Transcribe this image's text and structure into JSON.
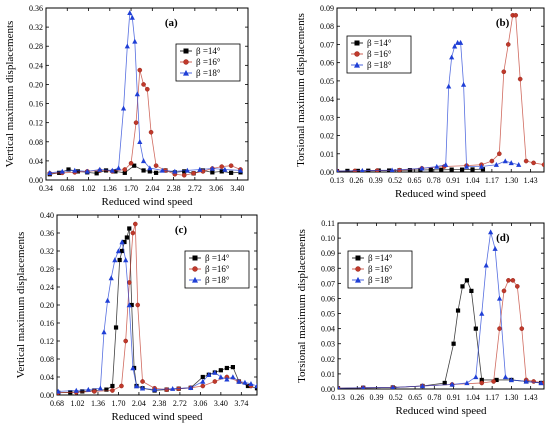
{
  "chart_data": [
    {
      "type": "line",
      "panel_label": "(a)",
      "xlabel": "Reduced wind speed",
      "ylabel": "Vertical maximum displacements",
      "xlim": [
        0.34,
        3.57
      ],
      "ylim": [
        0,
        0.36
      ],
      "xticks": [
        "0.34",
        "0.68",
        "1.02",
        "1.36",
        "1.70",
        "2.04",
        "2.38",
        "2.72",
        "3.06",
        "3.40"
      ],
      "yticks": [
        "0.00",
        "0.04",
        "0.08",
        "0.12",
        "0.16",
        "0.20",
        "0.24",
        "0.28",
        "0.32",
        "0.36"
      ],
      "legend_position": "upper-right",
      "series": [
        {
          "name": "β =14°",
          "color": "#000000",
          "marker": "square",
          "x": [
            0.4,
            0.55,
            0.7,
            0.85,
            1.0,
            1.15,
            1.3,
            1.45,
            1.6,
            1.75,
            1.9,
            2.0,
            2.1,
            2.25,
            2.4,
            2.55,
            2.7,
            2.85,
            3.0,
            3.15,
            3.3,
            3.45
          ],
          "y": [
            0.012,
            0.015,
            0.022,
            0.018,
            0.016,
            0.014,
            0.02,
            0.018,
            0.015,
            0.03,
            0.02,
            0.018,
            0.015,
            0.02,
            0.016,
            0.018,
            0.014,
            0.02,
            0.016,
            0.018,
            0.015,
            0.016
          ]
        },
        {
          "name": "β =16°",
          "color": "#c0392b",
          "marker": "circle",
          "x": [
            0.4,
            0.6,
            0.8,
            1.0,
            1.2,
            1.4,
            1.6,
            1.7,
            1.78,
            1.84,
            1.9,
            1.96,
            2.02,
            2.1,
            2.25,
            2.4,
            2.55,
            2.7,
            2.85,
            3.0,
            3.15,
            3.3,
            3.45
          ],
          "y": [
            0.014,
            0.015,
            0.016,
            0.018,
            0.02,
            0.018,
            0.022,
            0.035,
            0.12,
            0.23,
            0.2,
            0.19,
            0.1,
            0.03,
            0.02,
            0.012,
            0.01,
            0.014,
            0.018,
            0.024,
            0.028,
            0.03,
            0.022
          ]
        },
        {
          "name": "β =18°",
          "color": "#1f3fd6",
          "marker": "triangle",
          "x": [
            0.4,
            0.6,
            0.8,
            1.0,
            1.2,
            1.4,
            1.5,
            1.58,
            1.64,
            1.68,
            1.72,
            1.76,
            1.8,
            1.84,
            1.9,
            2.0,
            2.2,
            2.4,
            2.6,
            2.8,
            3.0,
            3.2,
            3.45
          ],
          "y": [
            0.015,
            0.018,
            0.02,
            0.018,
            0.022,
            0.02,
            0.025,
            0.15,
            0.28,
            0.35,
            0.34,
            0.29,
            0.18,
            0.08,
            0.04,
            0.025,
            0.02,
            0.018,
            0.02,
            0.022,
            0.024,
            0.022,
            0.02
          ]
        }
      ]
    },
    {
      "type": "line",
      "panel_label": "(b)",
      "xlabel": "Reduced wind speed",
      "ylabel": "Torsional maximum displacements",
      "xlim": [
        0.13,
        1.52
      ],
      "ylim": [
        0,
        0.09
      ],
      "xticks": [
        "0.13",
        "0.26",
        "0.39",
        "0.52",
        "0.65",
        "0.78",
        "0.91",
        "1.04",
        "1.17",
        "1.30",
        "1.43"
      ],
      "yticks": [
        "0.00",
        "0.01",
        "0.02",
        "0.03",
        "0.04",
        "0.05",
        "0.06",
        "0.07",
        "0.08",
        "0.09"
      ],
      "legend_position": "upper-left",
      "series": [
        {
          "name": "β =14°",
          "color": "#000000",
          "marker": "square",
          "x": [
            0.13,
            0.2,
            0.27,
            0.34,
            0.41,
            0.48,
            0.55,
            0.62,
            0.69,
            0.76,
            0.83,
            0.9,
            0.97,
            1.04,
            1.11
          ],
          "y": [
            0.0005,
            0.0006,
            0.0006,
            0.0007,
            0.0008,
            0.0008,
            0.0009,
            0.001,
            0.0011,
            0.0012,
            0.0012,
            0.0013,
            0.0013,
            0.0014,
            0.0015
          ]
        },
        {
          "name": "β =16°",
          "color": "#c0392b",
          "marker": "circle",
          "x": [
            0.13,
            0.25,
            0.4,
            0.55,
            0.7,
            0.85,
            1.0,
            1.1,
            1.17,
            1.22,
            1.25,
            1.28,
            1.31,
            1.33,
            1.36,
            1.4,
            1.45,
            1.52
          ],
          "y": [
            0.0005,
            0.0006,
            0.0008,
            0.001,
            0.002,
            0.003,
            0.0035,
            0.004,
            0.006,
            0.01,
            0.055,
            0.07,
            0.086,
            0.086,
            0.051,
            0.006,
            0.005,
            0.004
          ]
        },
        {
          "name": "β =18°",
          "color": "#1f3fd6",
          "marker": "triangle",
          "x": [
            0.13,
            0.3,
            0.5,
            0.7,
            0.8,
            0.86,
            0.88,
            0.9,
            0.92,
            0.94,
            0.96,
            0.98,
            1.0,
            1.1,
            1.2,
            1.26,
            1.3,
            1.35
          ],
          "y": [
            0.0005,
            0.0008,
            0.001,
            0.002,
            0.003,
            0.004,
            0.047,
            0.063,
            0.069,
            0.071,
            0.071,
            0.048,
            0.003,
            0.003,
            0.004,
            0.006,
            0.005,
            0.004
          ]
        }
      ]
    },
    {
      "type": "line",
      "panel_label": "(c)",
      "xlabel": "Reduced wind speed",
      "ylabel": "Vertical maximum displacements",
      "xlim": [
        0.68,
        4.0
      ],
      "ylim": [
        0,
        0.4
      ],
      "xticks": [
        "0.68",
        "1.02",
        "1.36",
        "1.70",
        "2.04",
        "2.38",
        "2.72",
        "3.06",
        "3.40",
        "3.74"
      ],
      "yticks": [
        "0.00",
        "0.04",
        "0.08",
        "0.12",
        "0.16",
        "0.20",
        "0.24",
        "0.28",
        "0.32",
        "0.36",
        "0.40"
      ],
      "legend_position": "upper-right",
      "series": [
        {
          "name": "β =14°",
          "color": "#000000",
          "marker": "square",
          "x": [
            0.7,
            0.9,
            1.1,
            1.3,
            1.5,
            1.6,
            1.66,
            1.72,
            1.76,
            1.8,
            1.84,
            1.88,
            1.92,
            1.96,
            2.0,
            2.1,
            2.3,
            2.5,
            2.7,
            2.9,
            3.1,
            3.2,
            3.3,
            3.4,
            3.5,
            3.6,
            3.7,
            3.85,
            4.0
          ],
          "y": [
            0.005,
            0.006,
            0.008,
            0.01,
            0.012,
            0.02,
            0.15,
            0.3,
            0.32,
            0.34,
            0.35,
            0.37,
            0.2,
            0.06,
            0.02,
            0.015,
            0.01,
            0.012,
            0.014,
            0.016,
            0.04,
            0.045,
            0.05,
            0.055,
            0.06,
            0.062,
            0.03,
            0.02,
            0.015
          ]
        },
        {
          "name": "β =16°",
          "color": "#c0392b",
          "marker": "circle",
          "x": [
            0.7,
            1.0,
            1.3,
            1.6,
            1.75,
            1.82,
            1.88,
            1.94,
            1.98,
            2.02,
            2.1,
            2.3,
            2.5,
            2.7,
            2.9,
            3.1,
            3.3,
            3.5,
            3.7,
            3.9
          ],
          "y": [
            0.005,
            0.006,
            0.008,
            0.01,
            0.02,
            0.12,
            0.25,
            0.36,
            0.38,
            0.2,
            0.03,
            0.015,
            0.012,
            0.014,
            0.016,
            0.02,
            0.03,
            0.04,
            0.03,
            0.02
          ]
        },
        {
          "name": "β =18°",
          "color": "#1f3fd6",
          "marker": "triangle",
          "x": [
            0.7,
            1.0,
            1.2,
            1.4,
            1.46,
            1.52,
            1.58,
            1.64,
            1.7,
            1.76,
            1.82,
            1.88,
            1.94,
            2.0,
            2.1,
            2.3,
            2.6,
            2.9,
            3.1,
            3.2,
            3.3,
            3.4,
            3.5,
            3.6,
            3.7,
            3.8,
            3.9,
            4.0
          ],
          "y": [
            0.008,
            0.01,
            0.012,
            0.015,
            0.14,
            0.21,
            0.26,
            0.3,
            0.32,
            0.34,
            0.3,
            0.2,
            0.06,
            0.02,
            0.015,
            0.012,
            0.014,
            0.016,
            0.03,
            0.045,
            0.05,
            0.04,
            0.035,
            0.04,
            0.03,
            0.028,
            0.025,
            0.02
          ]
        }
      ]
    },
    {
      "type": "line",
      "panel_label": "(d)",
      "xlabel": "Reduced wind speed",
      "ylabel": "Torsional maximum displacements",
      "xlim": [
        0.13,
        1.52
      ],
      "ylim": [
        0,
        0.11
      ],
      "xticks": [
        "0.13",
        "0.26",
        "0.39",
        "0.52",
        "0.65",
        "0.78",
        "0.91",
        "1.04",
        "1.17",
        "1.30",
        "1.43"
      ],
      "yticks": [
        "0.00",
        "0.01",
        "0.02",
        "0.03",
        "0.04",
        "0.05",
        "0.06",
        "0.07",
        "0.08",
        "0.09",
        "0.10",
        "0.11"
      ],
      "legend_position": "upper-left",
      "series": [
        {
          "name": "β =14°",
          "color": "#000000",
          "marker": "square",
          "x": [
            0.13,
            0.3,
            0.5,
            0.7,
            0.85,
            0.91,
            0.94,
            0.97,
            1.0,
            1.03,
            1.06,
            1.1,
            1.2,
            1.3,
            1.4,
            1.5
          ],
          "y": [
            0.0005,
            0.0008,
            0.001,
            0.002,
            0.004,
            0.03,
            0.052,
            0.068,
            0.072,
            0.065,
            0.04,
            0.006,
            0.006,
            0.006,
            0.005,
            0.004
          ]
        },
        {
          "name": "β =16°",
          "color": "#c0392b",
          "marker": "circle",
          "x": [
            0.13,
            0.3,
            0.5,
            0.7,
            0.9,
            1.1,
            1.18,
            1.22,
            1.25,
            1.28,
            1.31,
            1.34,
            1.37,
            1.4,
            1.45,
            1.52
          ],
          "y": [
            0.0005,
            0.0008,
            0.001,
            0.002,
            0.003,
            0.004,
            0.005,
            0.04,
            0.065,
            0.072,
            0.072,
            0.068,
            0.04,
            0.006,
            0.005,
            0.004
          ]
        },
        {
          "name": "β =18°",
          "color": "#1f3fd6",
          "marker": "triangle",
          "x": [
            0.13,
            0.3,
            0.5,
            0.7,
            0.9,
            1.0,
            1.06,
            1.1,
            1.13,
            1.16,
            1.19,
            1.22,
            1.26,
            1.3,
            1.4,
            1.5
          ],
          "y": [
            0.0005,
            0.0008,
            0.001,
            0.002,
            0.003,
            0.004,
            0.008,
            0.05,
            0.082,
            0.104,
            0.093,
            0.06,
            0.008,
            0.006,
            0.005,
            0.004
          ]
        }
      ]
    }
  ]
}
